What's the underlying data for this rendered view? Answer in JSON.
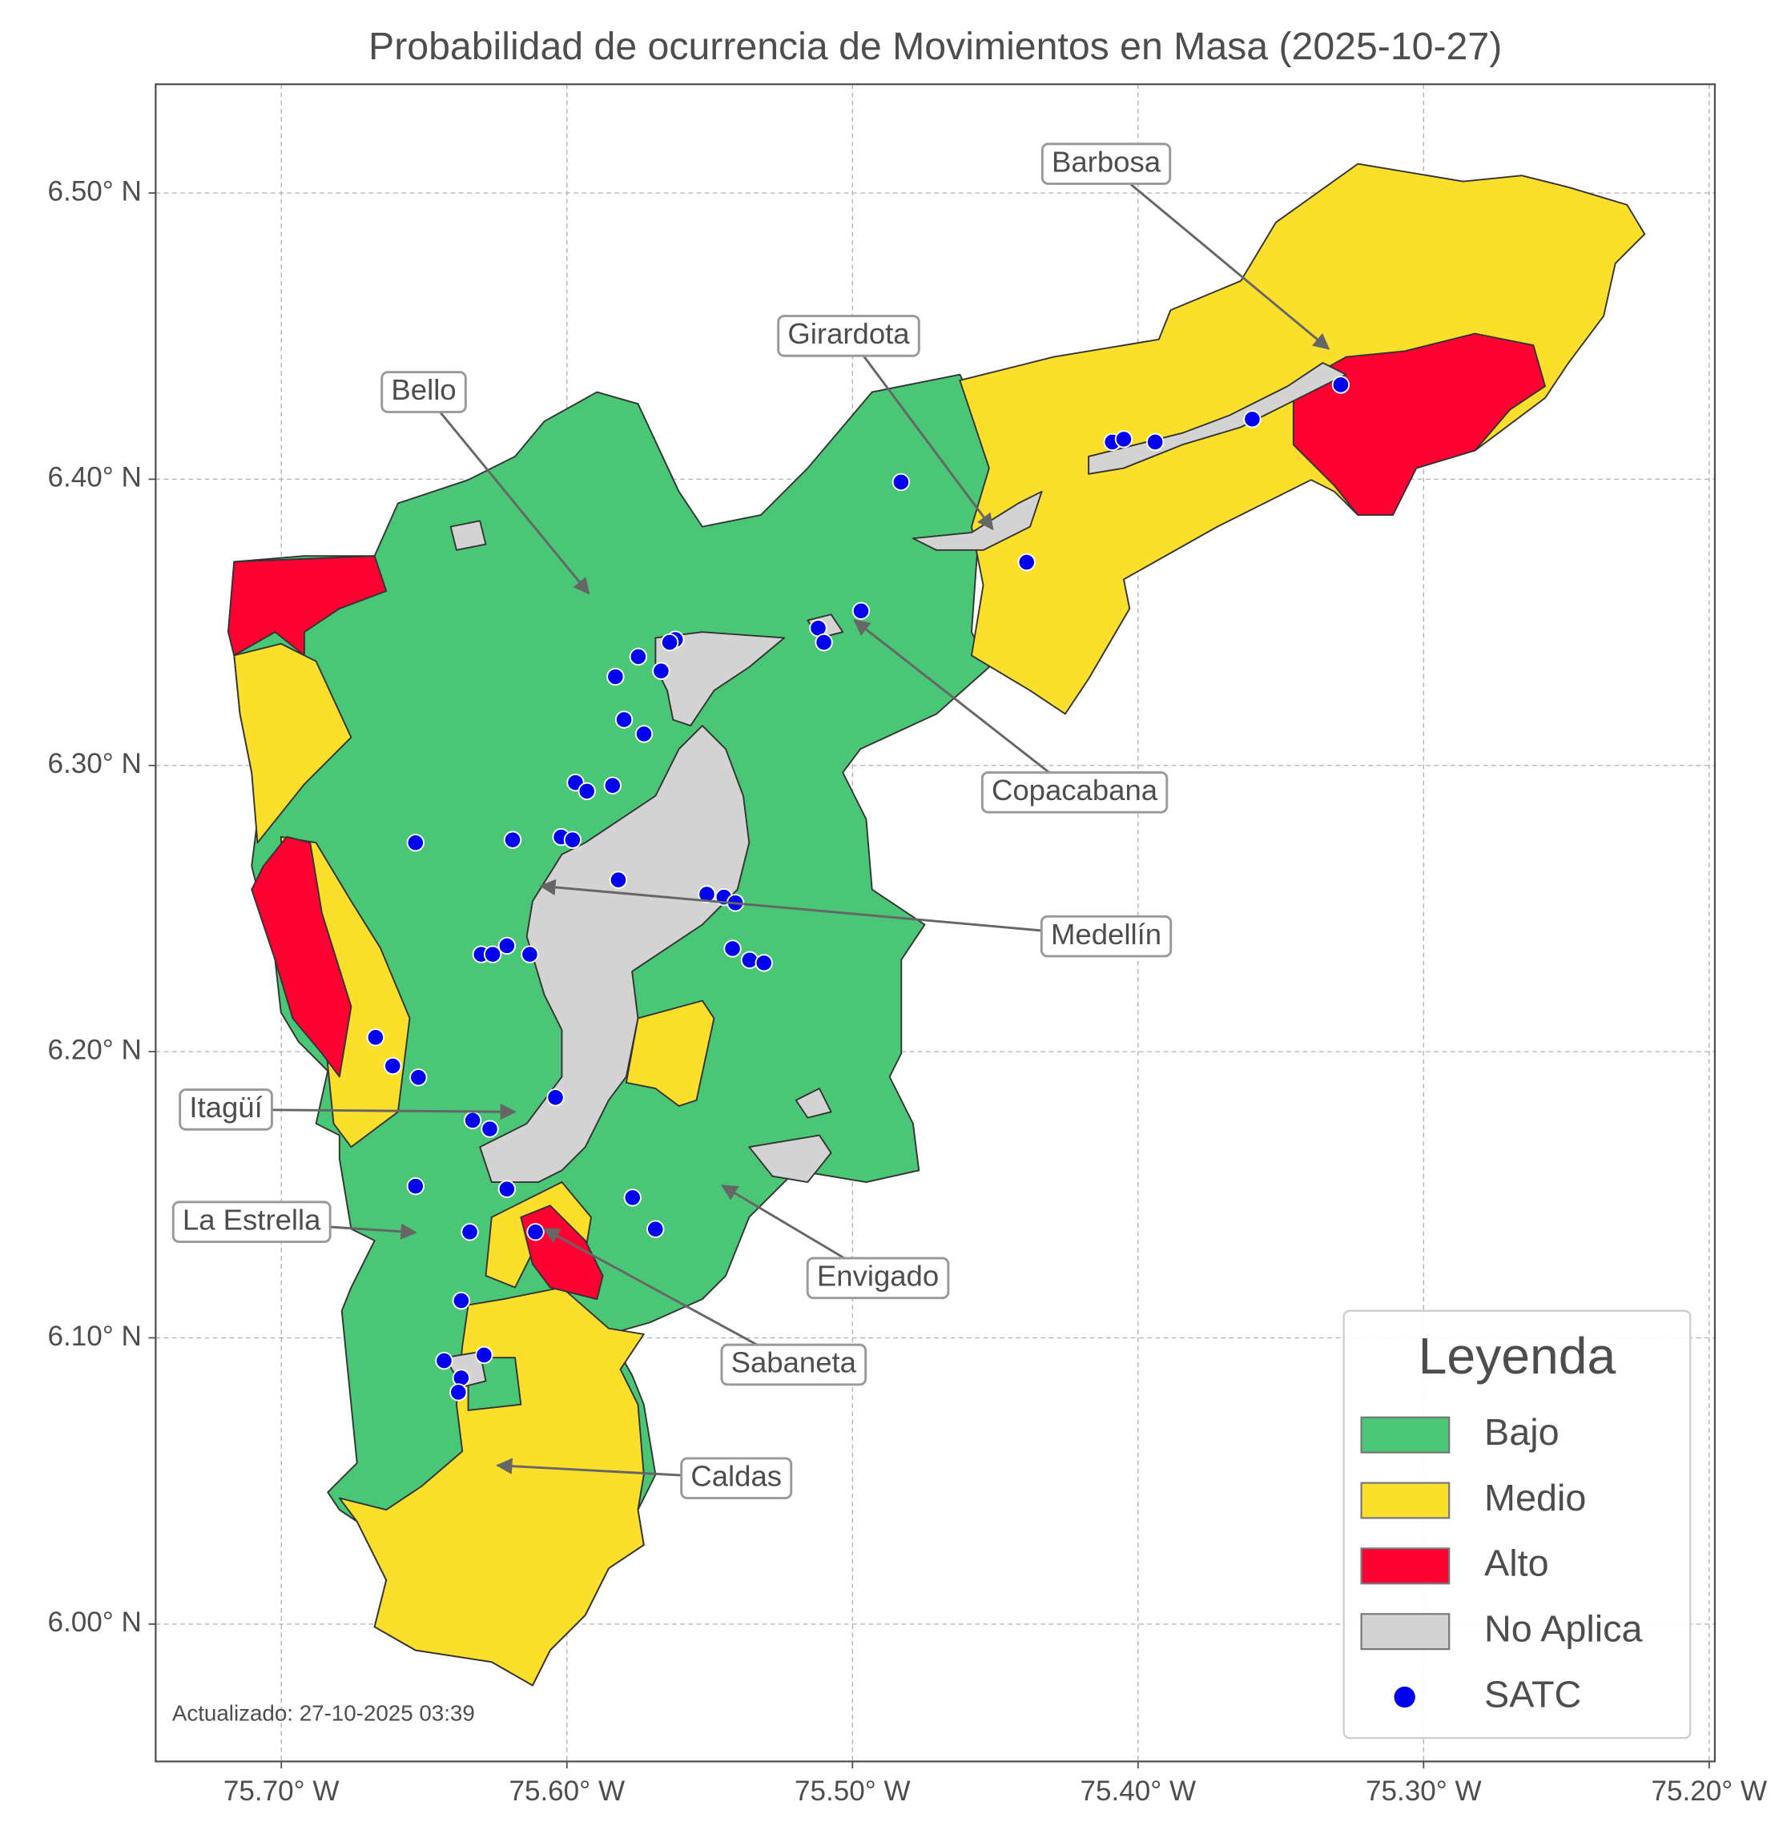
{
  "chart_data": {
    "type": "map",
    "title": "Probabilidad de ocurrencia de Movimientos en Masa (2025-10-27)",
    "xlim": [
      -75.744,
      -75.198
    ],
    "ylim": [
      5.952,
      6.538
    ],
    "xticks": [
      {
        "value": -75.7,
        "label": "75.70° W"
      },
      {
        "value": -75.6,
        "label": "75.60° W"
      },
      {
        "value": -75.5,
        "label": "75.50° W"
      },
      {
        "value": -75.4,
        "label": "75.40° W"
      },
      {
        "value": -75.3,
        "label": "75.30° W"
      },
      {
        "value": -75.2,
        "label": "75.20° W"
      }
    ],
    "yticks": [
      {
        "value": 6.0,
        "label": "6.00° N"
      },
      {
        "value": 6.1,
        "label": "6.10° N"
      },
      {
        "value": 6.2,
        "label": "6.20° N"
      },
      {
        "value": 6.3,
        "label": "6.30° N"
      },
      {
        "value": 6.4,
        "label": "6.40° N"
      },
      {
        "value": 6.5,
        "label": "6.50° N"
      }
    ],
    "grid": true,
    "legend": {
      "title": "Leyenda",
      "position": "lower right",
      "entries": [
        {
          "label": "Bajo",
          "color": "#4ac776"
        },
        {
          "label": "Medio",
          "color": "#fbdf2a"
        },
        {
          "label": "Alto",
          "color": "#ff0033"
        },
        {
          "label": "No Aplica",
          "color": "#d3d3d3"
        },
        {
          "label": "SATC",
          "color": "#0000ee"
        }
      ]
    },
    "annotations": [
      "Barbosa",
      "Girardota",
      "Bello",
      "Copacabana",
      "Medellín",
      "Itagüí",
      "La Estrella",
      "Envigado",
      "Sabaneta",
      "Caldas"
    ],
    "satc": {
      "lon": [
        -75.483,
        -75.329,
        -75.36,
        -75.409,
        -75.405,
        -75.394,
        -75.439,
        -75.497,
        -75.512,
        -75.51,
        -75.562,
        -75.564,
        -75.575,
        -75.583,
        -75.567,
        -75.58,
        -75.573,
        -75.597,
        -75.593,
        -75.584,
        -75.653,
        -75.619,
        -75.602,
        -75.598,
        -75.582,
        -75.551,
        -75.545,
        -75.541,
        -75.542,
        -75.536,
        -75.531,
        -75.621,
        -75.63,
        -75.626,
        -75.613,
        -75.667,
        -75.661,
        -75.652,
        -75.604,
        -75.633,
        -75.627,
        -75.653,
        -75.621,
        -75.577,
        -75.569,
        -75.634,
        -75.611,
        -75.637,
        -75.643,
        -75.629,
        -75.637,
        -75.638
      ],
      "lat": [
        6.399,
        6.433,
        6.421,
        6.413,
        6.414,
        6.413,
        6.371,
        6.354,
        6.348,
        6.343,
        6.344,
        6.343,
        6.338,
        6.331,
        6.333,
        6.316,
        6.311,
        6.294,
        6.291,
        6.293,
        6.273,
        6.274,
        6.275,
        6.274,
        6.26,
        6.255,
        6.254,
        6.252,
        6.236,
        6.232,
        6.231,
        6.237,
        6.234,
        6.234,
        6.234,
        6.205,
        6.195,
        6.191,
        6.184,
        6.176,
        6.173,
        6.153,
        6.152,
        6.149,
        6.138,
        6.137,
        6.137,
        6.113,
        6.092,
        6.094,
        6.086,
        6.081
      ]
    },
    "footnote": "Actualizado: 27-10-2025 03:39"
  }
}
